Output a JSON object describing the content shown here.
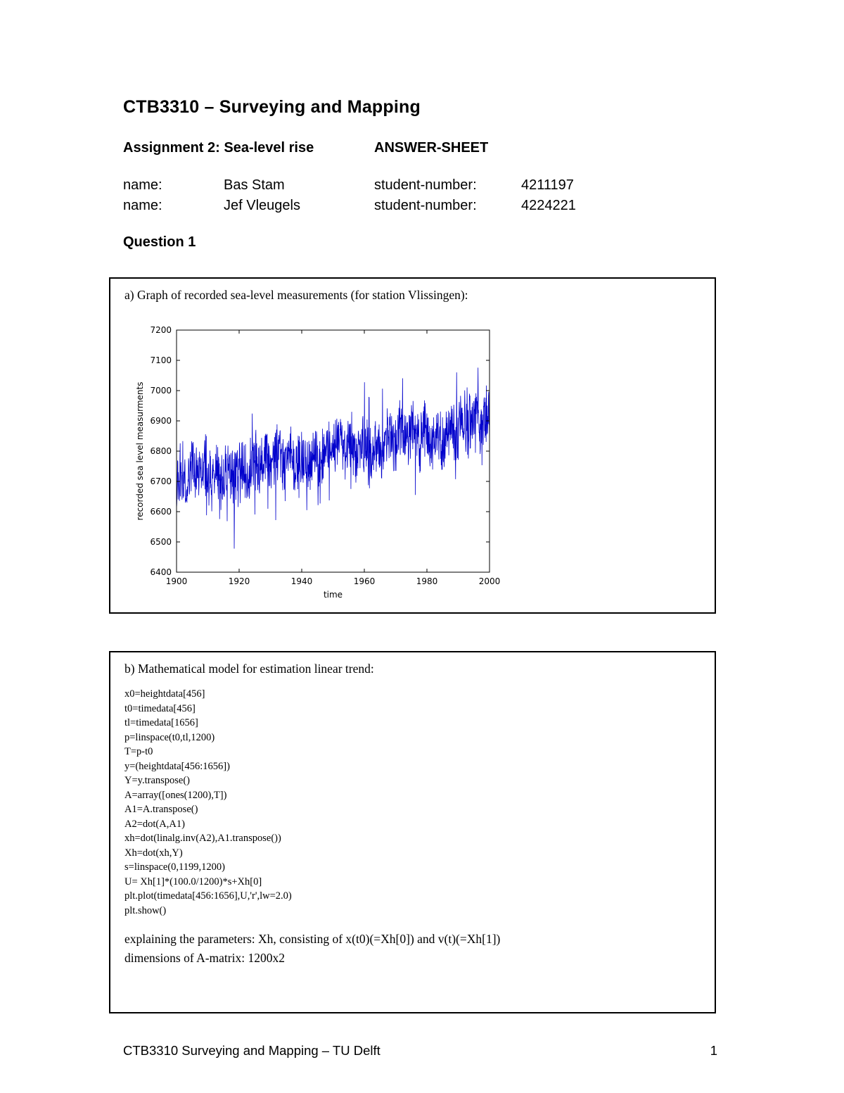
{
  "page": {
    "title": "CTB3310 – Surveying and Mapping",
    "assignment_heading": "Assignment 2: Sea-level rise",
    "answer_sheet_label": "ANSWER-SHEET",
    "names": [
      {
        "label": "name:",
        "value": "Bas Stam",
        "sn_label": "student-number:",
        "sn_value": "4211197"
      },
      {
        "label": "name:",
        "value": "Jef Vleugels",
        "sn_label": "student-number:",
        "sn_value": "4224221"
      }
    ],
    "question_heading": "Question 1",
    "footer": {
      "left": "CTB3310 Surveying and Mapping – TU Delft",
      "page_number": "1"
    }
  },
  "section_a": {
    "caption": "a) Graph of recorded sea-level measurements (for station Vlissingen):"
  },
  "section_b": {
    "caption": "b) Mathematical model for estimation linear trend:",
    "code_lines": [
      "x0=heightdata[456]",
      "t0=timedata[456]",
      "tl=timedata[1656]",
      "p=linspace(t0,tl,1200)",
      "T=p-t0",
      "y=(heightdata[456:1656])",
      "Y=y.transpose()",
      "A=array([ones(1200),T])",
      "A1=A.transpose()",
      "A2=dot(A,A1)",
      "xh=dot(linalg.inv(A2),A1.transpose())",
      "Xh=dot(xh,Y)",
      "s=linspace(0,1199,1200)",
      "U= Xh[1]*(100.0/1200)*s+Xh[0]",
      "plt.plot(timedata[456:1656],U,'r',lw=2.0)",
      "plt.show()"
    ],
    "explanation_lines": [
      "explaining the parameters: Xh, consisting of x(t0)(=Xh[0]) and v(t)(=Xh[1])",
      "dimensions of A-matrix: 1200x2"
    ]
  },
  "chart_data": {
    "type": "line",
    "title": "",
    "xlabel": "time",
    "ylabel": "recorded sea level measurments",
    "xlim": [
      1900,
      2000
    ],
    "ylim": [
      6400,
      7200
    ],
    "xticks": [
      1900,
      1920,
      1940,
      1960,
      1980,
      2000
    ],
    "yticks": [
      6400,
      6500,
      6600,
      6700,
      6800,
      6900,
      7000,
      7100,
      7200
    ],
    "grid": false,
    "legend": "none",
    "series": [
      {
        "name": "recorded sea level",
        "color": "#0000cc",
        "points": 1200,
        "trend_start": 6700,
        "trend_end": 6890,
        "noise_amplitude": 85,
        "spike_amplitude": 145,
        "observed_min": 6450,
        "observed_max": 7155,
        "seed": 987654
      }
    ]
  }
}
